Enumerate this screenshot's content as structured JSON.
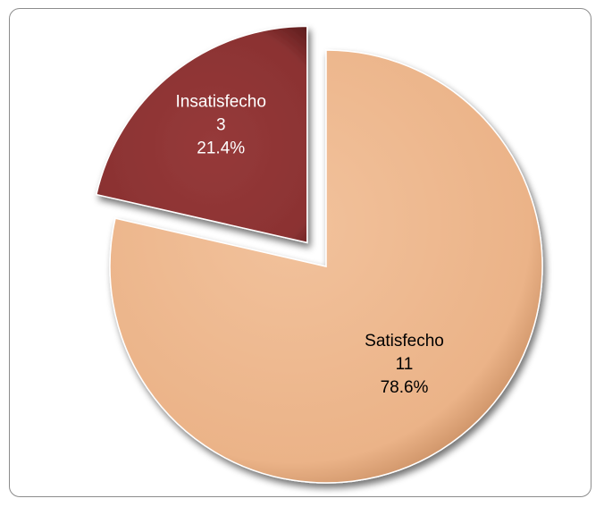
{
  "chart_data": {
    "type": "pie",
    "title": "",
    "slices": [
      {
        "label": "Satisfecho",
        "value": 11,
        "percent": "78.6%",
        "color": "#ebb388",
        "exploded": false
      },
      {
        "label": "Insatisfecho",
        "value": 3,
        "percent": "21.4%",
        "color": "#8b3232",
        "exploded": true
      }
    ],
    "legend": "none",
    "style": "3d-bevel"
  },
  "label_colors": {
    "Satisfecho": "#000000",
    "Insatisfecho": "#ffffff"
  }
}
